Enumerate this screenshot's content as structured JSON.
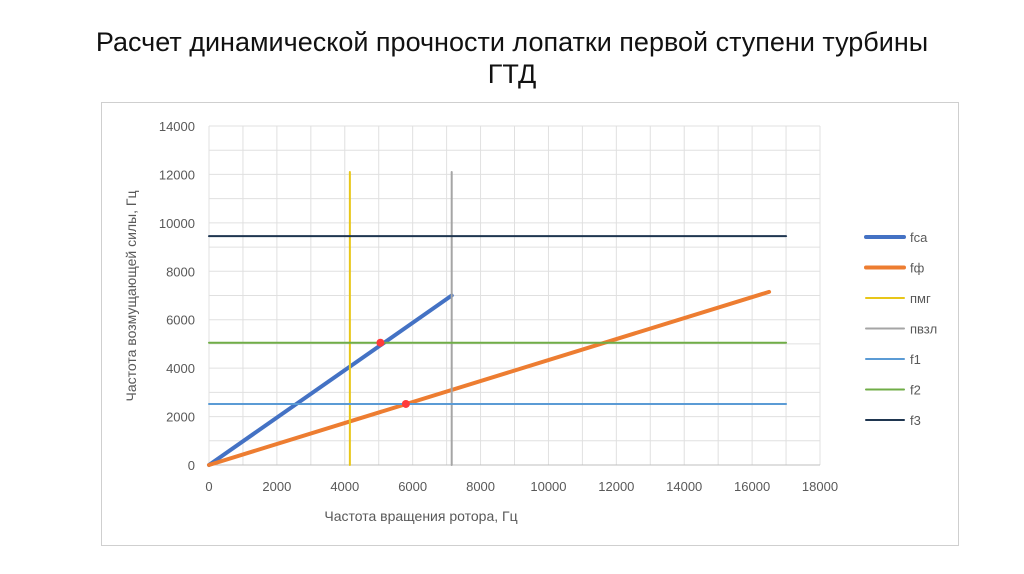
{
  "slide": {
    "title_line1": "Расчет динамической прочности лопатки первой ступени турбины",
    "title_line2": "ГТД"
  },
  "chart_data": {
    "type": "line",
    "title": "",
    "xlabel": "Частота вращения ротора, Гц",
    "ylabel": "Частота возмущающей силы, Гц",
    "xlim": [
      0,
      18000
    ],
    "ylim": [
      0,
      14000
    ],
    "x_ticks": [
      0,
      2000,
      4000,
      6000,
      8000,
      10000,
      12000,
      14000,
      16000,
      18000
    ],
    "y_ticks": [
      0,
      2000,
      4000,
      6000,
      8000,
      10000,
      12000,
      14000
    ],
    "x_tick_labels": [
      "0",
      "2000",
      "4000",
      "6000",
      "8000",
      "10000",
      "12000",
      "14000",
      "16000",
      "18000"
    ],
    "y_tick_labels": [
      "0",
      "2000",
      "4000",
      "6000",
      "8000",
      "10000",
      "12000",
      "14000"
    ],
    "grid": true,
    "legend_position": "right",
    "series": [
      {
        "name": "fca",
        "color": "#4472c4",
        "x": [
          0,
          7150
        ],
        "y": [
          0,
          7000
        ]
      },
      {
        "name": "fф",
        "color": "#ed7d31",
        "x": [
          0,
          16500
        ],
        "y": [
          0,
          7150
        ]
      },
      {
        "name": "пмг",
        "color": "#e8c619",
        "x": [
          4150,
          4150
        ],
        "y": [
          0,
          12100
        ]
      },
      {
        "name": "пвзл",
        "color": "#a5a5a5",
        "x": [
          7150,
          7150
        ],
        "y": [
          0,
          12100
        ]
      },
      {
        "name": "f1",
        "color": "#5b9bd5",
        "x": [
          0,
          17000
        ],
        "y": [
          2520,
          2520
        ]
      },
      {
        "name": "f2",
        "color": "#70ad47",
        "x": [
          0,
          17000
        ],
        "y": [
          5050,
          5050
        ]
      },
      {
        "name": "f3",
        "color": "#1f3650",
        "x": [
          0,
          17000
        ],
        "y": [
          9450,
          9450
        ]
      }
    ],
    "markers": [
      {
        "x": 5050,
        "y": 5050,
        "color": "#ff3b3b"
      },
      {
        "x": 5800,
        "y": 2520,
        "color": "#ff3b3b"
      }
    ]
  }
}
